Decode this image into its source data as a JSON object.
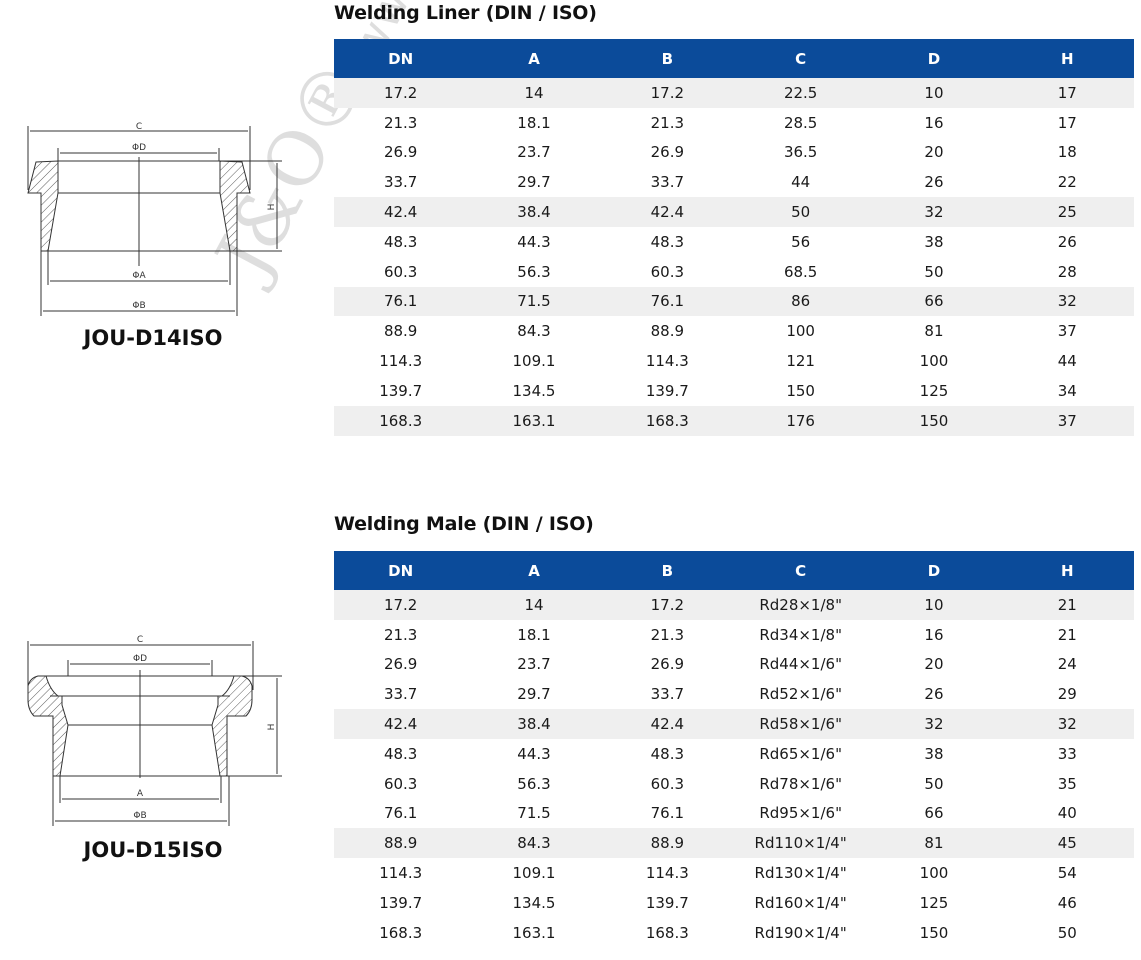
{
  "colors": {
    "header_bg": "#0b4b9a",
    "header_text": "#ffffff",
    "shaded_row": "#efefef"
  },
  "watermark": {
    "logo": "J&O®",
    "url": "www.sanitary-"
  },
  "liner": {
    "title": "Welding Liner (DIN / ISO)",
    "model": "JOU-D14ISO",
    "drawing_labels": {
      "c": "C",
      "d": "ΦD",
      "h": "H",
      "a": "ΦA",
      "b": "ΦB"
    },
    "columns": [
      "DN",
      "A",
      "B",
      "C",
      "D",
      "H"
    ],
    "rows": [
      [
        "17.2",
        "14",
        "17.2",
        "22.5",
        "10",
        "17"
      ],
      [
        "21.3",
        "18.1",
        "21.3",
        "28.5",
        "16",
        "17"
      ],
      [
        "26.9",
        "23.7",
        "26.9",
        "36.5",
        "20",
        "18"
      ],
      [
        "33.7",
        "29.7",
        "33.7",
        "44",
        "26",
        "22"
      ],
      [
        "42.4",
        "38.4",
        "42.4",
        "50",
        "32",
        "25"
      ],
      [
        "48.3",
        "44.3",
        "48.3",
        "56",
        "38",
        "26"
      ],
      [
        "60.3",
        "56.3",
        "60.3",
        "68.5",
        "50",
        "28"
      ],
      [
        "76.1",
        "71.5",
        "76.1",
        "86",
        "66",
        "32"
      ],
      [
        "88.9",
        "84.3",
        "88.9",
        "100",
        "81",
        "37"
      ],
      [
        "114.3",
        "109.1",
        "114.3",
        "121",
        "100",
        "44"
      ],
      [
        "139.7",
        "134.5",
        "139.7",
        "150",
        "125",
        "34"
      ],
      [
        "168.3",
        "163.1",
        "168.3",
        "176",
        "150",
        "37"
      ]
    ]
  },
  "male": {
    "title": "Welding Male (DIN / ISO)",
    "model": "JOU-D15ISO",
    "drawing_labels": {
      "c": "C",
      "d": "ΦD",
      "h": "H",
      "a": "A",
      "b": "ΦB"
    },
    "columns": [
      "DN",
      "A",
      "B",
      "C",
      "D",
      "H"
    ],
    "rows": [
      [
        "17.2",
        "14",
        "17.2",
        "Rd28×1/8\"",
        "10",
        "21"
      ],
      [
        "21.3",
        "18.1",
        "21.3",
        "Rd34×1/8\"",
        "16",
        "21"
      ],
      [
        "26.9",
        "23.7",
        "26.9",
        "Rd44×1/6\"",
        "20",
        "24"
      ],
      [
        "33.7",
        "29.7",
        "33.7",
        "Rd52×1/6\"",
        "26",
        "29"
      ],
      [
        "42.4",
        "38.4",
        "42.4",
        "Rd58×1/6\"",
        "32",
        "32"
      ],
      [
        "48.3",
        "44.3",
        "48.3",
        "Rd65×1/6\"",
        "38",
        "33"
      ],
      [
        "60.3",
        "56.3",
        "60.3",
        "Rd78×1/6\"",
        "50",
        "35"
      ],
      [
        "76.1",
        "71.5",
        "76.1",
        "Rd95×1/6\"",
        "66",
        "40"
      ],
      [
        "88.9",
        "84.3",
        "88.9",
        "Rd110×1/4\"",
        "81",
        "45"
      ],
      [
        "114.3",
        "109.1",
        "114.3",
        "Rd130×1/4\"",
        "100",
        "54"
      ],
      [
        "139.7",
        "134.5",
        "139.7",
        "Rd160×1/4\"",
        "125",
        "46"
      ],
      [
        "168.3",
        "163.1",
        "168.3",
        "Rd190×1/4\"",
        "150",
        "50"
      ]
    ]
  }
}
